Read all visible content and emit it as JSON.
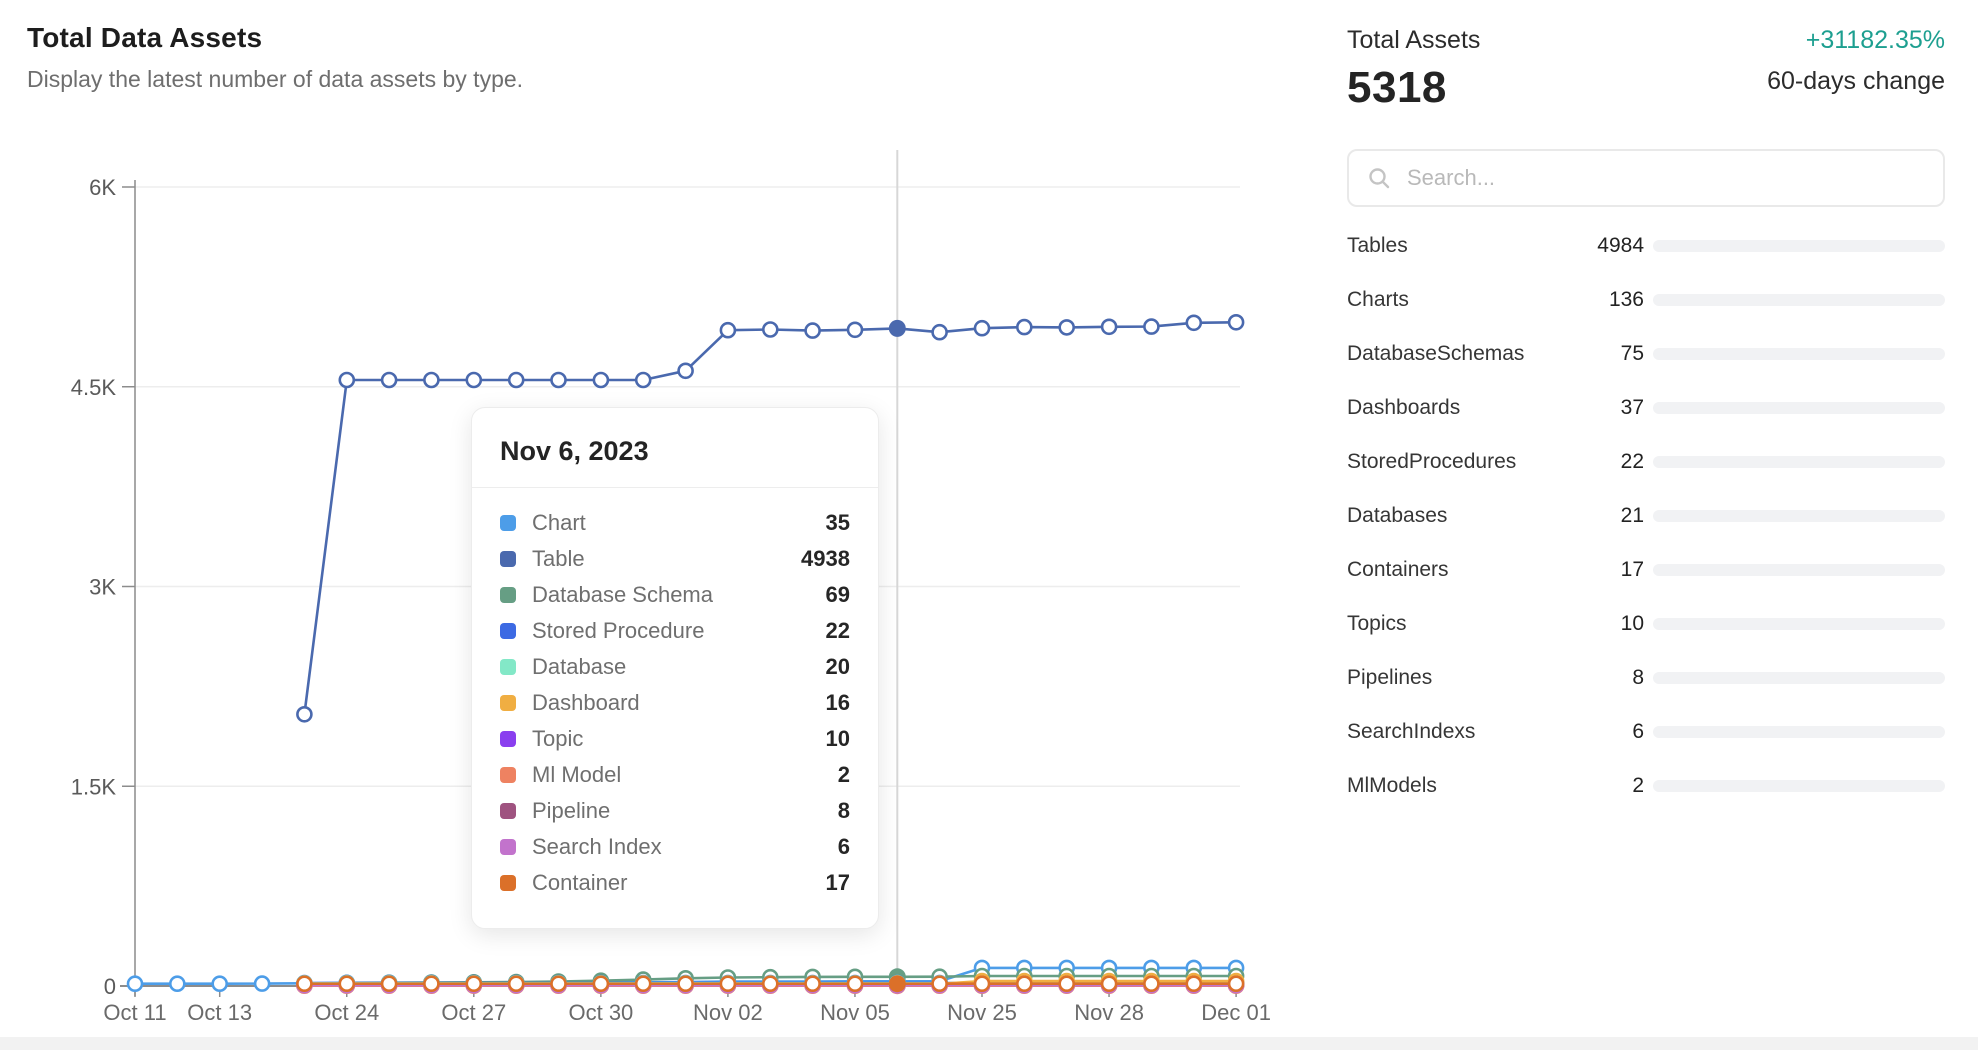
{
  "page": {
    "title": "Total Data Assets",
    "subtitle": "Display the latest number of data assets by type."
  },
  "summary": {
    "total_label": "Total Assets",
    "total_value": "5318",
    "change_value": "+31182.35%",
    "change_label": "60-days change",
    "change_color": "#1d9f90"
  },
  "search": {
    "placeholder": "Search..."
  },
  "asset_list": {
    "max_total": 5318,
    "items": [
      {
        "label": "Tables",
        "value": 4984,
        "color": "#4D9DE8"
      },
      {
        "label": "Charts",
        "value": 136,
        "color": "#4A69AE"
      },
      {
        "label": "DatabaseSchemas",
        "value": 75,
        "color": "#669E84"
      },
      {
        "label": "Dashboards",
        "value": 37,
        "color": "#3D6AE3"
      },
      {
        "label": "StoredProcedures",
        "value": 22,
        "color": "#83E8C7"
      },
      {
        "label": "Databases",
        "value": 21,
        "color": "#F0AE42"
      },
      {
        "label": "Containers",
        "value": 17,
        "color": "#8A3FEF"
      },
      {
        "label": "Topics",
        "value": 10,
        "color": "#EE8261"
      },
      {
        "label": "Pipelines",
        "value": 8,
        "color": "#9F5380"
      },
      {
        "label": "SearchIndexs",
        "value": 6,
        "color": "#C273CC"
      },
      {
        "label": "MlModels",
        "value": 2,
        "color": "#DB7029"
      }
    ]
  },
  "tooltip": {
    "title": "Nov 6, 2023",
    "rows": [
      {
        "label": "Chart",
        "value": 35,
        "color": "#4D9DE8"
      },
      {
        "label": "Table",
        "value": 4938,
        "color": "#4A69AE"
      },
      {
        "label": "Database Schema",
        "value": 69,
        "color": "#669E84"
      },
      {
        "label": "Stored Procedure",
        "value": 22,
        "color": "#3D6AE3"
      },
      {
        "label": "Database",
        "value": 20,
        "color": "#83E8C7"
      },
      {
        "label": "Dashboard",
        "value": 16,
        "color": "#F0AE42"
      },
      {
        "label": "Topic",
        "value": 10,
        "color": "#8A3FEF"
      },
      {
        "label": "Ml Model",
        "value": 2,
        "color": "#EE8261"
      },
      {
        "label": "Pipeline",
        "value": 8,
        "color": "#9F5380"
      },
      {
        "label": "Search Index",
        "value": 6,
        "color": "#C273CC"
      },
      {
        "label": "Container",
        "value": 17,
        "color": "#DB7029"
      }
    ]
  },
  "chart_data": {
    "type": "line",
    "title": "Total Data Assets over time",
    "xlabel": "",
    "ylabel": "",
    "ylim": [
      0,
      6000
    ],
    "grid": true,
    "y_ticks": [
      {
        "v": 0,
        "label": "0"
      },
      {
        "v": 1500,
        "label": "1.5K"
      },
      {
        "v": 3000,
        "label": "3K"
      },
      {
        "v": 4500,
        "label": "4.5K"
      },
      {
        "v": 6000,
        "label": "6K"
      }
    ],
    "point_count": 27,
    "x_tick_positions": [
      0,
      2,
      5,
      8,
      11,
      14,
      17,
      20,
      23,
      26
    ],
    "x_tick_labels": [
      "Oct 11",
      "Oct 13",
      "Oct 24",
      "Oct 27",
      "Oct 30",
      "Nov 02",
      "Nov 05",
      "Nov 25",
      "Nov 28",
      "Dec 01"
    ],
    "highlight": {
      "index": 18,
      "date": "Nov 6, 2023"
    },
    "series": [
      {
        "name": "Chart",
        "color": "#4D9DE8",
        "values": [
          17,
          17,
          17,
          18,
          20,
          24,
          25,
          25,
          25,
          25,
          26,
          27,
          28,
          30,
          33,
          34,
          34,
          35,
          35,
          35,
          136,
          136,
          136,
          136,
          136,
          136,
          136
        ]
      },
      {
        "name": "Table",
        "color": "#4A69AE",
        "values": [
          null,
          null,
          null,
          null,
          2040,
          4551,
          4551,
          4551,
          4551,
          4551,
          4551,
          4551,
          4551,
          4620,
          4925,
          4930,
          4922,
          4928,
          4938,
          4910,
          4940,
          4948,
          4946,
          4950,
          4952,
          4980,
          4984
        ]
      },
      {
        "name": "Database Schema",
        "color": "#669E84",
        "values": [
          null,
          null,
          null,
          null,
          12,
          22,
          24,
          26,
          28,
          30,
          34,
          40,
          48,
          58,
          64,
          66,
          68,
          69,
          69,
          70,
          75,
          75,
          75,
          75,
          75,
          75,
          75
        ]
      },
      {
        "name": "Stored Procedure",
        "color": "#3D6AE3",
        "values": [
          null,
          null,
          null,
          null,
          22,
          22,
          22,
          22,
          22,
          22,
          22,
          22,
          22,
          22,
          22,
          22,
          22,
          22,
          22,
          22,
          22,
          22,
          22,
          22,
          22,
          22,
          22
        ]
      },
      {
        "name": "Database",
        "color": "#83E8C7",
        "values": [
          null,
          null,
          null,
          null,
          20,
          20,
          20,
          20,
          20,
          20,
          20,
          20,
          20,
          20,
          20,
          20,
          20,
          20,
          20,
          20,
          21,
          21,
          21,
          21,
          21,
          21,
          21
        ]
      },
      {
        "name": "Dashboard",
        "color": "#F0AE42",
        "values": [
          null,
          null,
          null,
          null,
          16,
          16,
          16,
          16,
          16,
          16,
          16,
          16,
          16,
          16,
          16,
          16,
          16,
          16,
          16,
          16,
          37,
          37,
          37,
          37,
          37,
          37,
          37
        ]
      },
      {
        "name": "Topic",
        "color": "#8A3FEF",
        "values": [
          null,
          null,
          null,
          null,
          10,
          10,
          10,
          10,
          10,
          10,
          10,
          10,
          10,
          10,
          10,
          10,
          10,
          10,
          10,
          10,
          10,
          10,
          10,
          10,
          10,
          10,
          10
        ]
      },
      {
        "name": "Ml Model",
        "color": "#EE8261",
        "values": [
          null,
          null,
          null,
          null,
          2,
          2,
          2,
          2,
          2,
          2,
          2,
          2,
          2,
          2,
          2,
          2,
          2,
          2,
          2,
          2,
          2,
          2,
          2,
          2,
          2,
          2,
          2
        ]
      },
      {
        "name": "Pipeline",
        "color": "#9F5380",
        "values": [
          null,
          null,
          null,
          null,
          8,
          8,
          8,
          8,
          8,
          8,
          8,
          8,
          8,
          8,
          8,
          8,
          8,
          8,
          8,
          8,
          8,
          8,
          8,
          8,
          8,
          8,
          8
        ]
      },
      {
        "name": "Search Index",
        "color": "#C273CC",
        "values": [
          null,
          null,
          null,
          null,
          6,
          6,
          6,
          6,
          6,
          6,
          6,
          6,
          6,
          6,
          6,
          6,
          6,
          6,
          6,
          6,
          6,
          6,
          6,
          6,
          6,
          6,
          6
        ]
      },
      {
        "name": "Container",
        "color": "#DB7029",
        "values": [
          null,
          null,
          null,
          null,
          17,
          17,
          17,
          17,
          17,
          17,
          17,
          17,
          17,
          17,
          17,
          17,
          17,
          17,
          17,
          17,
          17,
          17,
          17,
          17,
          17,
          17,
          17
        ]
      }
    ]
  }
}
